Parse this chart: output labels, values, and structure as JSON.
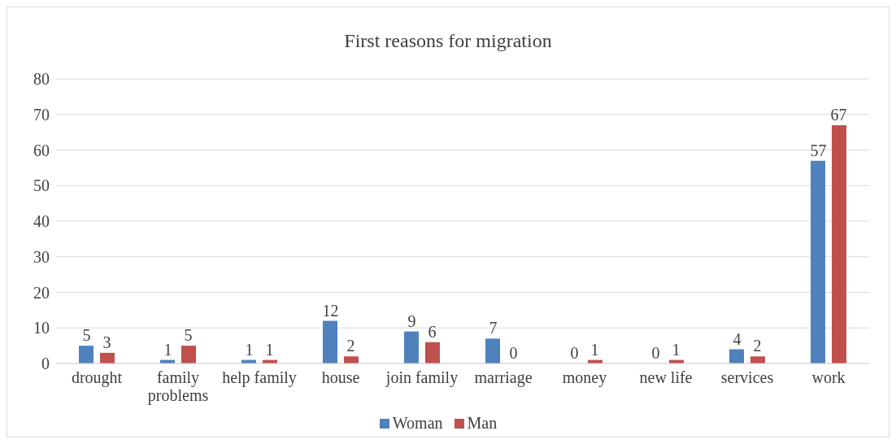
{
  "chart_data": {
    "type": "bar",
    "title": "First reasons for migration",
    "categories": [
      "drought",
      "family problems",
      "help family",
      "house",
      "join family",
      "marriage",
      "money",
      "new life",
      "services",
      "work"
    ],
    "series": [
      {
        "name": "Woman",
        "color": "#4f81bd",
        "values": [
          5,
          1,
          1,
          12,
          9,
          7,
          0,
          0,
          4,
          57
        ]
      },
      {
        "name": "Man",
        "color": "#c0504d",
        "values": [
          3,
          5,
          1,
          2,
          6,
          0,
          1,
          1,
          2,
          67
        ]
      }
    ],
    "ylim": [
      0,
      80
    ],
    "yticks": [
      0,
      10,
      20,
      30,
      40,
      50,
      60,
      70,
      80
    ],
    "grid": "y",
    "legend": "bottom",
    "data_labels": true
  }
}
